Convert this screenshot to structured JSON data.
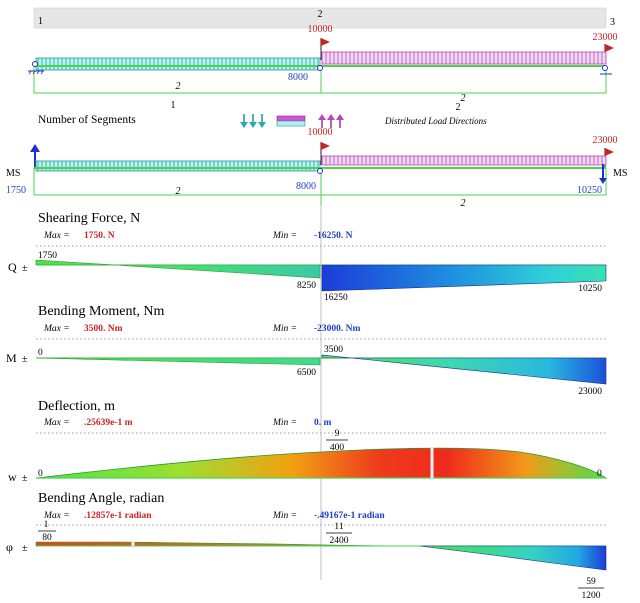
{
  "nodes": {
    "n1": "1",
    "n2": "2",
    "n3": "3"
  },
  "scheme": {
    "force_mid": "10000",
    "force_right": "23000",
    "mid_label": "8000",
    "seg_left": "2",
    "seg_right": "2",
    "span_index_1": "1",
    "span_index_2": "2"
  },
  "legend": {
    "segments_label": "Number of Segments",
    "load_dir_label": "Distributed Load Directions"
  },
  "beam2": {
    "force_mid": "10000",
    "force_right": "23000",
    "ms_left": "MS",
    "ms_right": "MS",
    "reaction_left": "1750",
    "mid_label": "8000",
    "right_label": "10250",
    "seg_left": "2",
    "seg_right": "2"
  },
  "shear": {
    "title": "Shearing Force, N",
    "max_label": "Max =",
    "max_value": "1750. N",
    "min_label": "Min =",
    "min_value": "-16250. N",
    "axis": "Q",
    "v_start": "1750",
    "v_mid_left": "8250",
    "v_mid_right": "16250",
    "v_end": "10250"
  },
  "moment": {
    "title": "Bending Moment, Nm",
    "max_label": "Max =",
    "max_value": "3500. Nm",
    "min_label": "Min =",
    "min_value": "-23000. Nm",
    "axis": "M",
    "v_start": "0",
    "v_mid_left": "6500",
    "v_mid_right": "3500",
    "v_end": "23000"
  },
  "deflection": {
    "title": "Deflection, m",
    "max_label": "Max =",
    "max_value": ".25639e-1 m",
    "min_label": "Min =",
    "min_value": "0. m",
    "axis": "w",
    "v_start": "0",
    "v_mid_num": "9",
    "v_mid_den": "400",
    "v_end": "0"
  },
  "angle": {
    "title": "Bending Angle, radian",
    "max_label": "Max =",
    "max_value": ".12857e-1 radian",
    "min_label": "Min =",
    "min_value": "-.49167e-1 radian",
    "axis": "φ",
    "v_start_num": "1",
    "v_start_den": "80",
    "v_mid_num": "11",
    "v_mid_den": "2400",
    "v_end_num": "59",
    "v_end_den": "1200"
  },
  "colors": {
    "load_fill": "#aef0f0",
    "load_edge": "#2aa3a3",
    "load_pink": "#d84fd8",
    "beam_green": "#4dd24d",
    "force_red": "#cc2222",
    "value_blue": "#1f3fc0",
    "support_blue": "#1a33cc"
  }
}
